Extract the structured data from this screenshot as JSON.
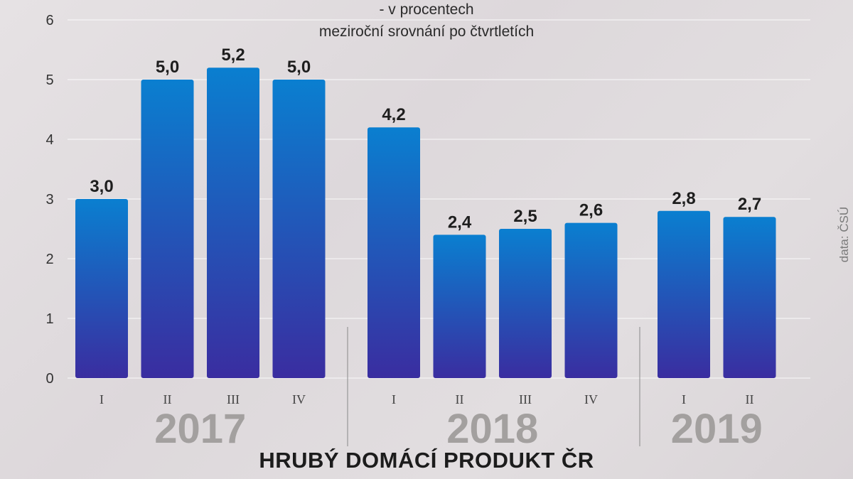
{
  "title": "HRUBÝ DOMÁCÍ PRODUKT ČR",
  "subtitle_line1": "- v procentech",
  "subtitle_line2": "meziroční srovnání po čtvrtletích",
  "source": "data: ČSÚ",
  "colors": {
    "bar_top": "#0a7fd0",
    "bar_bottom": "#3a2da0",
    "axis": "#555555",
    "year": "#a3a09f"
  },
  "chart_data": {
    "type": "bar",
    "ylim": [
      0,
      6
    ],
    "yticks": [
      "0",
      "1",
      "2",
      "3",
      "4",
      "5",
      "6"
    ],
    "grid": true,
    "groups": [
      {
        "year": "2017",
        "quarters": [
          "I",
          "II",
          "III",
          "IV"
        ],
        "values": [
          3.0,
          5.0,
          5.2,
          5.0
        ],
        "labels": [
          "3,0",
          "5,0",
          "5,2",
          "5,0"
        ]
      },
      {
        "year": "2018",
        "quarters": [
          "I",
          "II",
          "III",
          "IV"
        ],
        "values": [
          4.2,
          2.4,
          2.5,
          2.6
        ],
        "labels": [
          "4,2",
          "2,4",
          "2,5",
          "2,6"
        ]
      },
      {
        "year": "2019",
        "quarters": [
          "I",
          "II"
        ],
        "values": [
          2.8,
          2.7
        ],
        "labels": [
          "2,8",
          "2,7"
        ]
      }
    ]
  }
}
